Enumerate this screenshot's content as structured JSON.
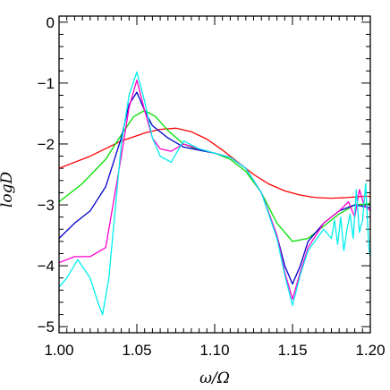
{
  "chart_data": {
    "type": "line",
    "xlabel": "ω/Ω",
    "ylabel": "logD",
    "xlim": [
      1.0,
      1.2
    ],
    "ylim": [
      -5.1,
      0.1
    ],
    "x_ticks": [
      1.0,
      1.05,
      1.1,
      1.15,
      1.2
    ],
    "x_tick_labels": [
      "1.00",
      "1.05",
      "1.10",
      "1.15",
      "1.20"
    ],
    "y_ticks": [
      0,
      -1,
      -2,
      -3,
      -4,
      -5
    ],
    "y_tick_labels": [
      "0",
      "−1",
      "−2",
      "−3",
      "−4",
      "−5"
    ],
    "grid": false,
    "legend": "none",
    "series": [
      {
        "color": "#ff0000",
        "x": [
          1.0,
          1.02,
          1.04,
          1.055,
          1.065,
          1.075,
          1.085,
          1.095,
          1.105,
          1.115,
          1.125,
          1.135,
          1.145,
          1.155,
          1.165,
          1.175,
          1.185,
          1.195,
          1.2
        ],
        "y": [
          -2.4,
          -2.2,
          -1.95,
          -1.82,
          -1.76,
          -1.74,
          -1.8,
          -1.92,
          -2.1,
          -2.3,
          -2.5,
          -2.66,
          -2.77,
          -2.84,
          -2.88,
          -2.89,
          -2.88,
          -2.86,
          -2.86
        ]
      },
      {
        "color": "#00dd00",
        "x": [
          1.0,
          1.015,
          1.03,
          1.04,
          1.048,
          1.055,
          1.062,
          1.07,
          1.08,
          1.09,
          1.1,
          1.11,
          1.12,
          1.13,
          1.14,
          1.15,
          1.16,
          1.17,
          1.18,
          1.19,
          1.2
        ],
        "y": [
          -2.95,
          -2.65,
          -2.25,
          -1.85,
          -1.55,
          -1.45,
          -1.55,
          -1.78,
          -2.0,
          -2.1,
          -2.15,
          -2.25,
          -2.45,
          -2.8,
          -3.3,
          -3.6,
          -3.55,
          -3.35,
          -3.15,
          -3.0,
          -2.98
        ]
      },
      {
        "color": "#0000cc",
        "x": [
          1.0,
          1.01,
          1.02,
          1.03,
          1.04,
          1.045,
          1.05,
          1.055,
          1.06,
          1.07,
          1.08,
          1.09,
          1.1,
          1.11,
          1.12,
          1.13,
          1.14,
          1.145,
          1.15,
          1.155,
          1.16,
          1.17,
          1.18,
          1.19,
          1.2
        ],
        "y": [
          -3.55,
          -3.3,
          -3.1,
          -2.7,
          -1.9,
          -1.35,
          -1.15,
          -1.45,
          -1.7,
          -1.9,
          -2.05,
          -2.1,
          -2.15,
          -2.22,
          -2.4,
          -2.8,
          -3.5,
          -4.0,
          -4.3,
          -4.0,
          -3.6,
          -3.3,
          -3.1,
          -3.0,
          -3.05
        ]
      },
      {
        "color": "#ff00cc",
        "x": [
          1.0,
          1.01,
          1.02,
          1.03,
          1.04,
          1.045,
          1.05,
          1.055,
          1.06,
          1.065,
          1.072,
          1.08,
          1.09,
          1.1,
          1.11,
          1.12,
          1.13,
          1.14,
          1.145,
          1.15,
          1.155,
          1.16,
          1.17,
          1.18,
          1.186,
          1.19,
          1.193,
          1.196,
          1.2
        ],
        "y": [
          -3.95,
          -3.85,
          -3.85,
          -3.7,
          -2.2,
          -1.4,
          -0.95,
          -1.45,
          -1.9,
          -2.08,
          -2.12,
          -2.0,
          -2.08,
          -2.15,
          -2.22,
          -2.4,
          -2.8,
          -3.5,
          -4.1,
          -4.55,
          -4.1,
          -3.7,
          -3.3,
          -3.1,
          -2.95,
          -3.2,
          -2.75,
          -3.0,
          -3.1
        ]
      },
      {
        "color": "#00eeee",
        "x": [
          1.0,
          1.005,
          1.012,
          1.02,
          1.025,
          1.028,
          1.032,
          1.04,
          1.045,
          1.05,
          1.055,
          1.06,
          1.065,
          1.072,
          1.08,
          1.09,
          1.1,
          1.11,
          1.12,
          1.13,
          1.14,
          1.145,
          1.15,
          1.155,
          1.16,
          1.17,
          1.175,
          1.177,
          1.179,
          1.181,
          1.183,
          1.185,
          1.187,
          1.189,
          1.191,
          1.193,
          1.195,
          1.197,
          1.199,
          1.2
        ],
        "y": [
          -4.35,
          -4.2,
          -3.9,
          -4.2,
          -4.6,
          -4.8,
          -4.2,
          -2.0,
          -1.2,
          -0.82,
          -1.3,
          -1.9,
          -2.2,
          -2.3,
          -1.95,
          -2.08,
          -2.15,
          -2.22,
          -2.4,
          -2.8,
          -3.55,
          -4.15,
          -4.65,
          -4.15,
          -3.75,
          -3.4,
          -3.55,
          -3.25,
          -3.65,
          -3.2,
          -3.75,
          -3.4,
          -3.15,
          -3.55,
          -2.75,
          -3.45,
          -3.25,
          -2.65,
          -3.7,
          -3.85
        ]
      }
    ]
  }
}
